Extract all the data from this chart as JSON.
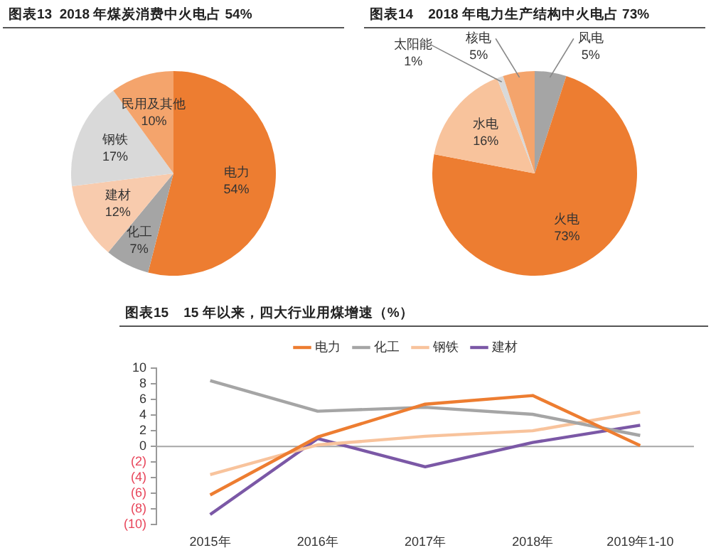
{
  "chart_data": [
    {
      "type": "pie",
      "title": "图表13  2018 年煤炭消费中火电占 54%",
      "categories": [
        "电力",
        "化工",
        "建材",
        "钢铁",
        "民用及其他"
      ],
      "values": [
        54,
        7,
        12,
        17,
        10
      ],
      "colors": [
        "#ed7d31",
        "#a5a5a5",
        "#f8cbad",
        "#d9d9d9",
        "#f4a46c"
      ],
      "value_labels": [
        "54%",
        "7%",
        "12%",
        "17%",
        "10%"
      ],
      "legend": false
    },
    {
      "type": "pie",
      "title": "图表14    2018 年电力生产结构中火电占 73%",
      "categories": [
        "风电",
        "火电",
        "水电",
        "太阳能",
        "核电"
      ],
      "values": [
        5,
        73,
        16,
        1,
        5
      ],
      "colors": [
        "#a5a5a5",
        "#ed7d31",
        "#f8c39c",
        "#d9d9d9",
        "#f4a46c"
      ],
      "value_labels": [
        "5%",
        "73%",
        "16%",
        "1%",
        "5%"
      ],
      "legend": false
    },
    {
      "type": "line",
      "title": "图表15    15 年以来，四大行业用煤增速（%）",
      "categories": [
        "2015年",
        "2016年",
        "2017年",
        "2018年",
        "2019年1-10"
      ],
      "series": [
        {
          "name": "电力",
          "color": "#ed7d31",
          "values": [
            -6.2,
            1.2,
            5.4,
            6.5,
            0.1
          ]
        },
        {
          "name": "化工",
          "color": "#a5a5a5",
          "values": [
            8.4,
            4.5,
            5.0,
            4.1,
            1.4
          ]
        },
        {
          "name": "钢铁",
          "color": "#f8c39c",
          "values": [
            -3.6,
            0.2,
            1.3,
            2.0,
            4.4
          ]
        },
        {
          "name": "建材",
          "color": "#7b58a6",
          "values": [
            -8.7,
            1.0,
            -2.6,
            0.5,
            2.7
          ]
        }
      ],
      "ylim": [
        -10,
        10
      ],
      "yticks": [
        {
          "value": -10,
          "label": "(10)"
        },
        {
          "value": -8,
          "label": "(8)"
        },
        {
          "value": -6,
          "label": "(6)"
        },
        {
          "value": -4,
          "label": "(4)"
        },
        {
          "value": -2,
          "label": "(2)"
        },
        0,
        2,
        4,
        6,
        8,
        10
      ],
      "ref_lines": [
        {
          "axis": "y",
          "value": 0,
          "color": "#a6a6a6"
        }
      ],
      "legend": "top",
      "grid": false,
      "marker": "none",
      "line_style": "solid"
    }
  ]
}
